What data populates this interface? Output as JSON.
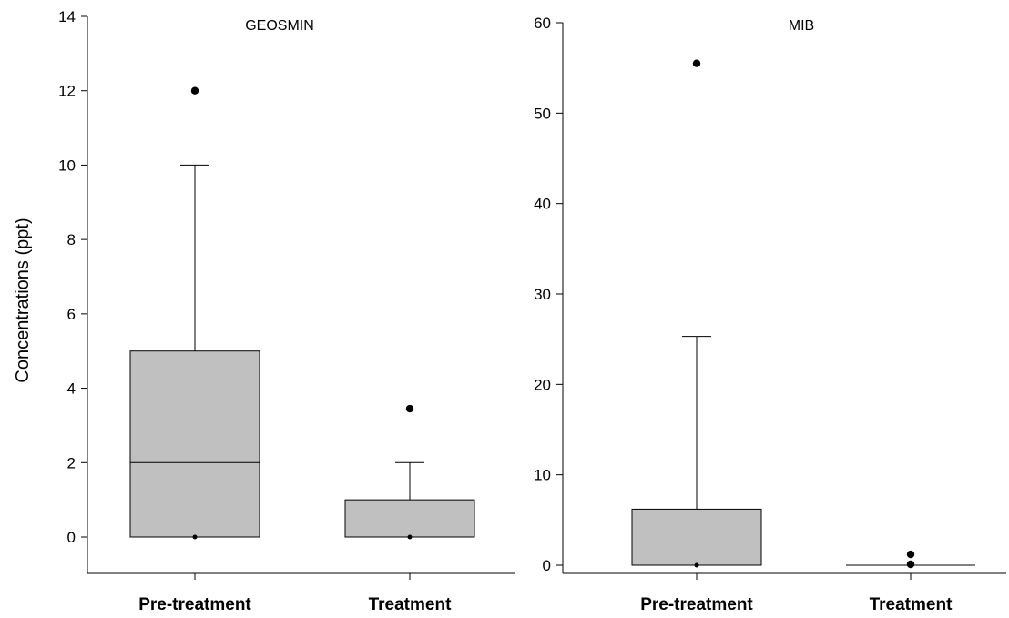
{
  "ylabel": "Concentrations (ppt)",
  "colors": {
    "box_fill": "#c0c0c0",
    "stroke": "#000000"
  },
  "chart_data": [
    {
      "type": "box",
      "title": "GEOSMIN",
      "categories": [
        "Pre-treatment",
        "Treatment"
      ],
      "ylim": [
        -1,
        14
      ],
      "yticks": [
        0,
        2,
        4,
        6,
        8,
        10,
        12,
        14
      ],
      "boxes": [
        {
          "name": "Pre-treatment",
          "q1": 0,
          "median": 2,
          "q3": 5,
          "whisker_low": 0,
          "whisker_high": 10,
          "outliers": [
            12,
            0
          ]
        },
        {
          "name": "Treatment",
          "q1": 0,
          "median": 0,
          "q3": 1,
          "whisker_low": 0,
          "whisker_high": 2,
          "outliers": [
            3.45,
            0
          ]
        }
      ]
    },
    {
      "type": "box",
      "title": "MIB",
      "categories": [
        "Pre-treatment",
        "Treatment"
      ],
      "ylim": [
        -1,
        60
      ],
      "yticks": [
        0,
        10,
        20,
        30,
        40,
        50,
        60
      ],
      "boxes": [
        {
          "name": "Pre-treatment",
          "q1": 0,
          "median": 0,
          "q3": 6.2,
          "whisker_low": 0,
          "whisker_high": 25.3,
          "outliers": [
            55.5,
            0
          ]
        },
        {
          "name": "Treatment",
          "q1": 0,
          "median": 0,
          "q3": 0,
          "whisker_low": 0,
          "whisker_high": 0,
          "outliers": [
            1.2,
            0.1
          ]
        }
      ]
    }
  ]
}
